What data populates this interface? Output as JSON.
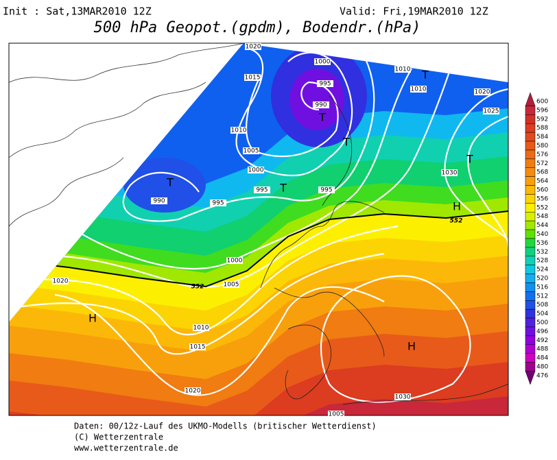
{
  "header": {
    "init": "Init : Sat,13MAR2010 12Z",
    "valid": "Valid: Fri,19MAR2010 12Z",
    "title": "500 hPa Geopot.(gpdm), Bodendr.(hPa)"
  },
  "isobar_labels": [
    1020,
    1015,
    1000,
    995,
    990,
    1010,
    1010,
    1020,
    1025,
    1010,
    1005,
    1000,
    995,
    995,
    1030,
    990,
    995,
    1000,
    1005,
    1020,
    1010,
    1015,
    1020,
    1030,
    1005
  ],
  "contour_labels": [
    552,
    552
  ],
  "pressure_centers": [
    "T",
    "T",
    "T",
    "T",
    "T",
    "T",
    "H",
    "H",
    "H"
  ],
  "scale": {
    "ticks": [
      600,
      596,
      592,
      588,
      584,
      580,
      576,
      572,
      568,
      564,
      560,
      556,
      552,
      548,
      544,
      540,
      536,
      532,
      528,
      524,
      520,
      516,
      512,
      508,
      504,
      500,
      496,
      492,
      488,
      484,
      480,
      476
    ],
    "colors": [
      "#b0203a",
      "#c8283a",
      "#d03028",
      "#dc3c20",
      "#e04a1e",
      "#e85a1a",
      "#ec6a16",
      "#f07c12",
      "#f48c10",
      "#f8a00c",
      "#fcb808",
      "#fcd404",
      "#fcf000",
      "#d8f000",
      "#a0e800",
      "#60e000",
      "#20d840",
      "#10d080",
      "#10d0b8",
      "#10c8e0",
      "#10b0f0",
      "#1090f0",
      "#1070f0",
      "#2050e8",
      "#3030e0",
      "#5020e0",
      "#7010e0",
      "#9000e0",
      "#b000d0",
      "#d000c0",
      "#a00090",
      "#700070"
    ]
  },
  "footer": [
    "Daten: 00/12z-Lauf des UKMO-Modells (britischer Wetterdienst)",
    "(C) Wetterzentrale",
    "www.wetterzentrale.de"
  ]
}
